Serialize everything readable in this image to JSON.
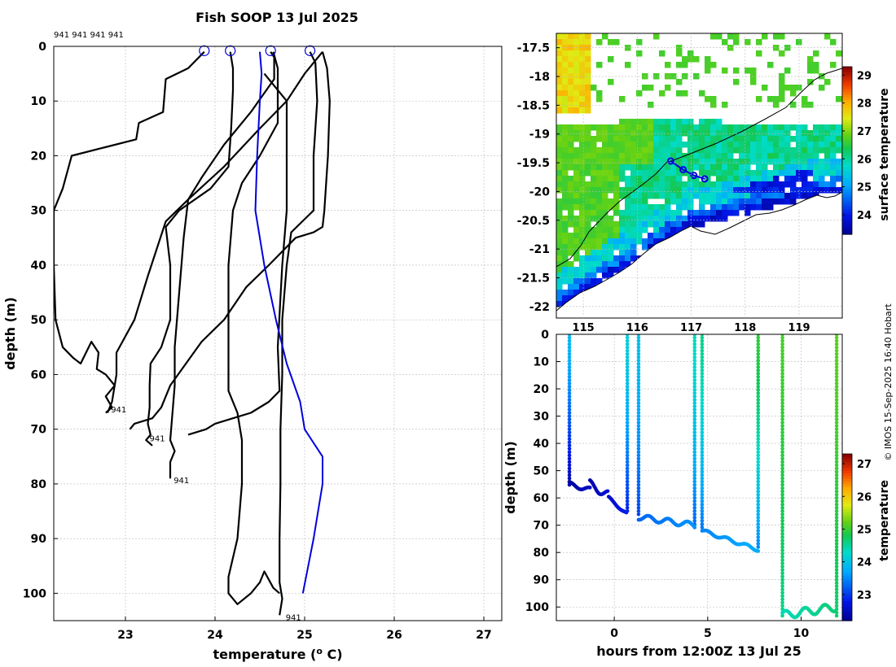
{
  "header": {
    "title": "Fish SOOP 13 Jul 2025"
  },
  "credit": "© IMOS 15-Sep-2025 16:40 Hobart",
  "colors": {
    "profile": "#000000",
    "climatology": "#0000dd",
    "marker": "#0000dd"
  },
  "chart_data": [
    {
      "id": "profiles",
      "type": "line",
      "xlabel": "temperature (",
      "xlabel_sup": "o",
      "xlabel_tail": " C)",
      "ylabel": "depth (m)",
      "xlim": [
        22.2,
        27.2
      ],
      "ylim": [
        0,
        105
      ],
      "xticks": [
        "23",
        "24",
        "25",
        "26",
        "27"
      ],
      "yticks": [
        "0",
        "10",
        "20",
        "30",
        "40",
        "50",
        "60",
        "70",
        "80",
        "90",
        "100"
      ],
      "top_label": "941 941 941 941",
      "surface_markers": [
        23.88,
        24.17,
        24.62,
        25.06
      ],
      "series": [
        {
          "name": "drop1",
          "label": "941",
          "points": [
            [
              23.88,
              1
            ],
            [
              23.7,
              4
            ],
            [
              23.45,
              6
            ],
            [
              23.42,
              12
            ],
            [
              23.15,
              14
            ],
            [
              23.12,
              17
            ],
            [
              22.4,
              20
            ],
            [
              22.3,
              26
            ],
            [
              22.2,
              30
            ],
            [
              22.2,
              40
            ],
            [
              22.22,
              50
            ],
            [
              22.3,
              55
            ],
            [
              22.42,
              57
            ],
            [
              22.5,
              58
            ],
            [
              22.62,
              54
            ],
            [
              22.7,
              56
            ],
            [
              22.68,
              59
            ],
            [
              22.78,
              60
            ],
            [
              22.88,
              62
            ],
            [
              22.78,
              64
            ],
            [
              22.85,
              66
            ],
            [
              22.78,
              67
            ]
          ],
          "label_at": [
            22.82,
            66.3
          ]
        },
        {
          "name": "drop2",
          "label": "941",
          "points": [
            [
              24.17,
              1
            ],
            [
              24.2,
              4
            ],
            [
              24.2,
              8
            ],
            [
              24.18,
              15
            ],
            [
              24.15,
              22
            ],
            [
              23.95,
              26
            ],
            [
              23.6,
              30
            ],
            [
              23.45,
              33
            ],
            [
              23.5,
              40
            ],
            [
              23.5,
              50
            ],
            [
              23.4,
              55
            ],
            [
              23.28,
              58
            ],
            [
              23.27,
              62
            ],
            [
              23.27,
              66
            ],
            [
              23.25,
              69
            ],
            [
              23.28,
              71
            ],
            [
              23.23,
              72
            ],
            [
              23.3,
              73
            ]
          ],
          "label_at": [
            23.25,
            71.6
          ]
        },
        {
          "name": "drop3",
          "label": "941",
          "points": [
            [
              24.62,
              1
            ],
            [
              24.66,
              2
            ],
            [
              24.66,
              6
            ],
            [
              24.4,
              12
            ],
            [
              24.1,
              18
            ],
            [
              23.85,
              24
            ],
            [
              23.7,
              28
            ],
            [
              23.65,
              35
            ],
            [
              23.6,
              45
            ],
            [
              23.55,
              55
            ],
            [
              23.55,
              62
            ],
            [
              23.52,
              68
            ],
            [
              23.5,
              72
            ],
            [
              23.55,
              74
            ],
            [
              23.5,
              76
            ],
            [
              23.5,
              79
            ]
          ],
          "label_at": [
            23.52,
            79.3
          ]
        },
        {
          "name": "drop4",
          "label": "941",
          "points": [
            [
              25.06,
              1
            ],
            [
              25.12,
              3
            ],
            [
              25.14,
              10
            ],
            [
              25.1,
              20
            ],
            [
              25.1,
              30
            ],
            [
              24.85,
              34
            ],
            [
              24.8,
              40
            ],
            [
              24.75,
              50
            ],
            [
              24.75,
              60
            ],
            [
              24.73,
              70
            ],
            [
              24.73,
              80
            ],
            [
              24.72,
              90
            ],
            [
              24.72,
              98
            ],
            [
              24.75,
              101
            ],
            [
              24.72,
              104
            ]
          ],
          "label_at": [
            24.77,
            104.3
          ]
        },
        {
          "name": "drop5",
          "points": [
            [
              25.2,
              1
            ],
            [
              25.25,
              4
            ],
            [
              25.28,
              10
            ],
            [
              25.26,
              20
            ],
            [
              25.22,
              30
            ],
            [
              25.2,
              33
            ],
            [
              25.1,
              34
            ],
            [
              24.9,
              35
            ],
            [
              24.6,
              40
            ],
            [
              24.35,
              44
            ],
            [
              24.1,
              50
            ],
            [
              23.85,
              54
            ],
            [
              23.5,
              62
            ],
            [
              23.4,
              66
            ],
            [
              23.3,
              68
            ],
            [
              23.1,
              69
            ],
            [
              23.05,
              70
            ]
          ]
        },
        {
          "name": "drop6",
          "points": [
            [
              25.2,
              1
            ],
            [
              25.0,
              5
            ],
            [
              24.8,
              10
            ],
            [
              24.5,
              15
            ],
            [
              24.1,
              22
            ],
            [
              23.7,
              28
            ],
            [
              23.45,
              32
            ],
            [
              23.25,
              42
            ],
            [
              23.1,
              50
            ],
            [
              22.9,
              56
            ],
            [
              22.9,
              60
            ],
            [
              22.85,
              65
            ],
            [
              22.8,
              67
            ]
          ]
        },
        {
          "name": "drop7",
          "points": [
            [
              24.65,
              1
            ],
            [
              24.7,
              4
            ],
            [
              24.7,
              14
            ],
            [
              24.5,
              20
            ],
            [
              24.3,
              25
            ],
            [
              24.2,
              30
            ],
            [
              24.15,
              40
            ],
            [
              24.15,
              55
            ],
            [
              24.15,
              63
            ],
            [
              24.25,
              67
            ],
            [
              24.3,
              72
            ],
            [
              24.3,
              80
            ],
            [
              24.25,
              90
            ],
            [
              24.15,
              97
            ],
            [
              24.15,
              100
            ],
            [
              24.25,
              102
            ],
            [
              24.4,
              100
            ],
            [
              24.5,
              98
            ],
            [
              24.55,
              96
            ],
            [
              24.65,
              99
            ],
            [
              24.72,
              100
            ]
          ]
        },
        {
          "name": "drop8",
          "points": [
            [
              24.55,
              5
            ],
            [
              24.8,
              10
            ],
            [
              24.8,
              30
            ],
            [
              24.75,
              40
            ],
            [
              24.7,
              55
            ],
            [
              24.72,
              63
            ],
            [
              24.6,
              65
            ],
            [
              24.4,
              67
            ],
            [
              24.2,
              68
            ],
            [
              24.0,
              69
            ],
            [
              23.9,
              70
            ],
            [
              23.7,
              71
            ]
          ]
        },
        {
          "name": "climatology",
          "color": "#0000dd",
          "points": [
            [
              24.5,
              1
            ],
            [
              24.52,
              5
            ],
            [
              24.5,
              10
            ],
            [
              24.47,
              20
            ],
            [
              24.45,
              30
            ],
            [
              24.55,
              40
            ],
            [
              24.68,
              50
            ],
            [
              24.8,
              58
            ],
            [
              24.95,
              65
            ],
            [
              25.0,
              70
            ],
            [
              25.2,
              75
            ],
            [
              25.2,
              80
            ],
            [
              25.1,
              90
            ],
            [
              24.98,
              100
            ]
          ]
        }
      ]
    },
    {
      "id": "map",
      "type": "heatmap",
      "xticks": [
        "115",
        "116",
        "117",
        "118",
        "119"
      ],
      "yticks": [
        "-17.5",
        "-18",
        "-18.5",
        "-19",
        "-19.5",
        "-20",
        "-20.5",
        "-21",
        "-21.5",
        "-22"
      ],
      "xlim": [
        114.5,
        119.8
      ],
      "ylim": [
        -22.2,
        -17.25
      ],
      "colorbar": {
        "label": "surface temperature",
        "range": [
          23.3,
          29.3
        ],
        "ticks": [
          "29",
          "28",
          "27",
          "26",
          "25",
          "24"
        ]
      },
      "track": [
        [
          116.62,
          -19.47
        ],
        [
          116.85,
          -19.62
        ],
        [
          117.05,
          -19.72
        ],
        [
          117.25,
          -19.78
        ]
      ]
    },
    {
      "id": "section",
      "type": "scatter",
      "xlabel": "hours from 12:00Z 13 Jul 25",
      "ylabel": "depth (m)",
      "xlim": [
        -3.1,
        12.2
      ],
      "ylim": [
        0,
        105
      ],
      "xticks": [
        "0",
        "5",
        "10"
      ],
      "yticks": [
        "0",
        "10",
        "20",
        "30",
        "40",
        "50",
        "60",
        "70",
        "80",
        "90",
        "100"
      ],
      "colorbar": {
        "label": "temperature",
        "range": [
          22.2,
          27.3
        ],
        "ticks": [
          "27",
          "26",
          "25",
          "24",
          "23"
        ]
      },
      "casts": [
        {
          "t": -2.4,
          "bottom": 56,
          "bottom_temp": 22.4,
          "surface_temp": 23.9
        },
        {
          "t": 0.7,
          "bottom": 66,
          "bottom_temp": 22.9,
          "surface_temp": 24.2
        },
        {
          "t": 1.3,
          "bottom": 67,
          "bottom_temp": 23.1,
          "surface_temp": 24.0
        },
        {
          "t": 4.3,
          "bottom": 71,
          "bottom_temp": 23.3,
          "surface_temp": 24.4
        },
        {
          "t": 4.7,
          "bottom": 72,
          "bottom_temp": 23.4,
          "surface_temp": 24.6
        },
        {
          "t": 7.7,
          "bottom": 79,
          "bottom_temp": 23.5,
          "surface_temp": 25.0
        },
        {
          "t": 9.0,
          "bottom": 104,
          "bottom_temp": 24.6,
          "surface_temp": 25.1
        },
        {
          "t": 11.9,
          "bottom": 104,
          "bottom_temp": 24.7,
          "surface_temp": 25.2
        }
      ]
    }
  ]
}
